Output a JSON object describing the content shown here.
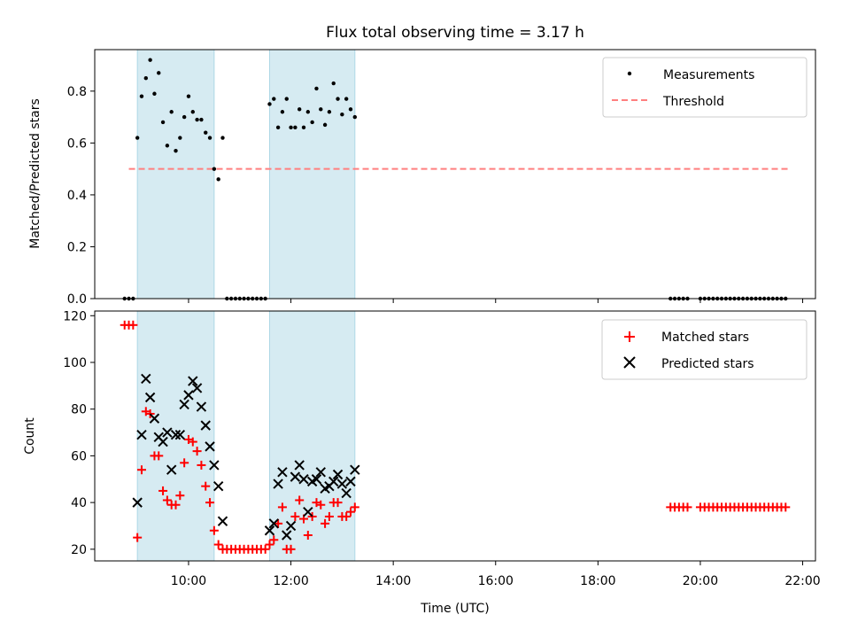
{
  "chart_data": [
    {
      "type": "scatter",
      "title": "Flux total observing time = 3.17 h",
      "xlabel": "",
      "ylabel": "Matched/Predicted stars",
      "ylim": [
        0,
        0.96
      ],
      "xlim": [
        "08:10",
        "22:15"
      ],
      "yticks": [
        "0.0",
        "0.2",
        "0.4",
        "0.6",
        "0.8"
      ],
      "ytick_values": [
        0.0,
        0.2,
        0.4,
        0.6,
        0.8
      ],
      "legend_position": "top-right",
      "grid": false,
      "shaded_intervals": [
        [
          "09:00",
          "10:30"
        ],
        [
          "11:35",
          "13:15"
        ]
      ],
      "shade_color": "#add8e6",
      "threshold": {
        "name": "Threshold",
        "value": 0.5,
        "x": [
          "08:50",
          "21:45"
        ],
        "color": "#ff7f7f"
      },
      "series": [
        {
          "name": "Measurements",
          "color": "#000000",
          "x": [
            "08:45",
            "08:50",
            "08:55",
            "09:00",
            "09:05",
            "09:10",
            "09:15",
            "09:20",
            "09:25",
            "09:30",
            "09:35",
            "09:40",
            "09:45",
            "09:50",
            "09:55",
            "10:00",
            "10:05",
            "10:10",
            "10:15",
            "10:20",
            "10:25",
            "10:30",
            "10:35",
            "10:40",
            "10:45",
            "10:50",
            "10:55",
            "11:00",
            "11:05",
            "11:10",
            "11:15",
            "11:20",
            "11:25",
            "11:30",
            "11:35",
            "11:40",
            "11:45",
            "11:50",
            "11:55",
            "12:00",
            "12:05",
            "12:10",
            "12:15",
            "12:20",
            "12:25",
            "12:30",
            "12:35",
            "12:40",
            "12:45",
            "12:50",
            "12:55",
            "13:00",
            "13:05",
            "13:10",
            "13:15",
            "19:25",
            "19:30",
            "19:35",
            "19:40",
            "19:45",
            "20:00",
            "20:05",
            "20:10",
            "20:15",
            "20:20",
            "20:25",
            "20:30",
            "20:35",
            "20:40",
            "20:45",
            "20:50",
            "20:55",
            "21:00",
            "21:05",
            "21:10",
            "21:15",
            "21:20",
            "21:25",
            "21:30",
            "21:35",
            "21:40"
          ],
          "y": [
            0,
            0,
            0,
            0.62,
            0.78,
            0.85,
            0.92,
            0.79,
            0.87,
            0.68,
            0.59,
            0.72,
            0.57,
            0.62,
            0.7,
            0.78,
            0.72,
            0.69,
            0.69,
            0.64,
            0.62,
            0.5,
            0.46,
            0.62,
            0,
            0,
            0,
            0,
            0,
            0,
            0,
            0,
            0,
            0,
            0.75,
            0.77,
            0.66,
            0.72,
            0.77,
            0.66,
            0.66,
            0.73,
            0.66,
            0.72,
            0.68,
            0.81,
            0.73,
            0.67,
            0.72,
            0.83,
            0.77,
            0.71,
            0.77,
            0.73,
            0.7,
            0,
            0,
            0,
            0,
            0,
            0,
            0,
            0,
            0,
            0,
            0,
            0,
            0,
            0,
            0,
            0,
            0,
            0,
            0,
            0,
            0,
            0,
            0,
            0,
            0,
            0
          ]
        }
      ]
    },
    {
      "type": "scatter",
      "title": "",
      "xlabel": "Time (UTC)",
      "ylabel": "Count",
      "ylim": [
        15,
        122
      ],
      "xlim": [
        "08:10",
        "22:15"
      ],
      "yticks": [
        "20",
        "40",
        "60",
        "80",
        "100",
        "120"
      ],
      "ytick_values": [
        20,
        40,
        60,
        80,
        100,
        120
      ],
      "xticks": [
        "10:00",
        "12:00",
        "14:00",
        "16:00",
        "18:00",
        "20:00",
        "22:00"
      ],
      "legend_position": "top-right",
      "grid": false,
      "series": [
        {
          "name": "Matched stars",
          "marker": "+",
          "color": "#ff0000",
          "x": [
            "08:45",
            "08:50",
            "08:55",
            "09:00",
            "09:05",
            "09:10",
            "09:15",
            "09:20",
            "09:25",
            "09:30",
            "09:35",
            "09:40",
            "09:45",
            "09:50",
            "09:55",
            "10:00",
            "10:05",
            "10:10",
            "10:15",
            "10:20",
            "10:25",
            "10:30",
            "10:35",
            "10:40",
            "10:45",
            "10:50",
            "10:55",
            "11:00",
            "11:05",
            "11:10",
            "11:15",
            "11:20",
            "11:25",
            "11:30",
            "11:35",
            "11:40",
            "11:45",
            "11:50",
            "11:55",
            "12:00",
            "12:05",
            "12:10",
            "12:15",
            "12:20",
            "12:25",
            "12:30",
            "12:35",
            "12:40",
            "12:45",
            "12:50",
            "12:55",
            "13:00",
            "13:05",
            "13:10",
            "13:15",
            "19:25",
            "19:30",
            "19:35",
            "19:40",
            "19:45",
            "20:00",
            "20:05",
            "20:10",
            "20:15",
            "20:20",
            "20:25",
            "20:30",
            "20:35",
            "20:40",
            "20:45",
            "20:50",
            "20:55",
            "21:00",
            "21:05",
            "21:10",
            "21:15",
            "21:20",
            "21:25",
            "21:30",
            "21:35",
            "21:40"
          ],
          "y": [
            116,
            116,
            116,
            25,
            54,
            79,
            78,
            60,
            60,
            45,
            41,
            39,
            39,
            43,
            57,
            67,
            66,
            62,
            56,
            47,
            40,
            28,
            22,
            20,
            20,
            20,
            20,
            20,
            20,
            20,
            20,
            20,
            20,
            20,
            22,
            24,
            31,
            38,
            20,
            20,
            34,
            41,
            33,
            26,
            34,
            40,
            39,
            31,
            34,
            40,
            40,
            34,
            34,
            36,
            38,
            38,
            38,
            38,
            38,
            38,
            38,
            38,
            38,
            38,
            38,
            38,
            38,
            38,
            38,
            38,
            38,
            38,
            38,
            38,
            38,
            38,
            38,
            38,
            38,
            38,
            38
          ]
        },
        {
          "name": "Predicted stars",
          "marker": "x",
          "color": "#000000",
          "x": [
            "09:00",
            "09:05",
            "09:10",
            "09:15",
            "09:20",
            "09:25",
            "09:30",
            "09:35",
            "09:40",
            "09:45",
            "09:50",
            "09:55",
            "10:00",
            "10:05",
            "10:10",
            "10:15",
            "10:20",
            "10:25",
            "10:30",
            "10:35",
            "10:40",
            "11:35",
            "11:40",
            "11:45",
            "11:50",
            "11:55",
            "12:00",
            "12:05",
            "12:10",
            "12:15",
            "12:20",
            "12:25",
            "12:30",
            "12:35",
            "12:40",
            "12:45",
            "12:50",
            "12:55",
            "13:00",
            "13:05",
            "13:10",
            "13:15"
          ],
          "y": [
            40,
            69,
            93,
            85,
            76,
            68,
            66,
            70,
            54,
            69,
            69,
            82,
            86,
            92,
            89,
            81,
            73,
            64,
            56,
            47,
            32,
            28,
            31,
            48,
            53,
            26,
            30,
            51,
            56,
            50,
            36,
            49,
            50,
            53,
            46,
            47,
            49,
            52,
            48,
            44,
            49,
            54
          ]
        }
      ]
    }
  ]
}
